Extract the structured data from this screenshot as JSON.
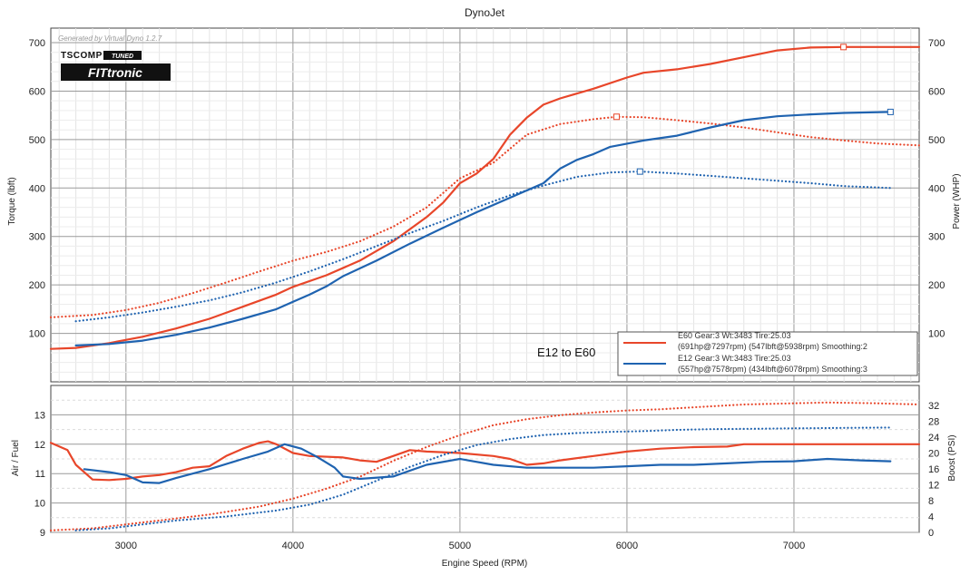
{
  "chart_data": {
    "title": "DynoJet",
    "generated_by": "Generated by Virtual Dyno 1.2.7",
    "logo_text": [
      "TSCOMP",
      "TUNED",
      "FITtronic"
    ],
    "annotation": "E12 to E60",
    "xlabel": "Engine Speed (RPM)",
    "x_ticks": [
      "3000",
      "4000",
      "5000",
      "6000",
      "7000"
    ],
    "xlim": [
      2550,
      7750
    ],
    "top_panel": {
      "type": "line",
      "ylabel_left": "Torque (lbft)",
      "ylabel_right": "Power (WHP)",
      "ylim": [
        0,
        730
      ],
      "y_ticks_left": [
        "100",
        "200",
        "300",
        "400",
        "500",
        "600",
        "700"
      ],
      "y_ticks_right": [
        "100",
        "200",
        "300",
        "400",
        "500",
        "600",
        "700"
      ],
      "series": [
        {
          "name": "E60 Gear:3 Wt:3483 Tire:25.03",
          "legend_detail": "(691hp@7297rpm) (547lbft@5938rpm) Smoothing:2",
          "metric": "power",
          "color": "#e8462a",
          "style": "solid",
          "marker": {
            "x": 7297,
            "y": 691
          },
          "points": [
            [
              2550,
              68
            ],
            [
              2700,
              70
            ],
            [
              2900,
              80
            ],
            [
              3100,
              93
            ],
            [
              3300,
              110
            ],
            [
              3500,
              130
            ],
            [
              3700,
              155
            ],
            [
              3900,
              180
            ],
            [
              4000,
              196
            ],
            [
              4200,
              220
            ],
            [
              4400,
              250
            ],
            [
              4600,
              290
            ],
            [
              4800,
              340
            ],
            [
              4900,
              370
            ],
            [
              5000,
              410
            ],
            [
              5100,
              430
            ],
            [
              5200,
              460
            ],
            [
              5300,
              510
            ],
            [
              5400,
              545
            ],
            [
              5500,
              572
            ],
            [
              5600,
              585
            ],
            [
              5800,
              605
            ],
            [
              6000,
              628
            ],
            [
              6100,
              638
            ],
            [
              6300,
              645
            ],
            [
              6500,
              656
            ],
            [
              6700,
              670
            ],
            [
              6900,
              684
            ],
            [
              7100,
              690
            ],
            [
              7297,
              691
            ],
            [
              7500,
              691
            ],
            [
              7750,
              691
            ]
          ]
        },
        {
          "name": "E60 torque",
          "metric": "torque",
          "color": "#e8462a",
          "style": "dotted",
          "marker": {
            "x": 5938,
            "y": 547
          },
          "points": [
            [
              2550,
              133
            ],
            [
              2800,
              138
            ],
            [
              3000,
              148
            ],
            [
              3200,
              163
            ],
            [
              3400,
              183
            ],
            [
              3600,
              205
            ],
            [
              3800,
              228
            ],
            [
              4000,
              250
            ],
            [
              4200,
              268
            ],
            [
              4400,
              290
            ],
            [
              4600,
              320
            ],
            [
              4800,
              360
            ],
            [
              5000,
              420
            ],
            [
              5200,
              452
            ],
            [
              5400,
              510
            ],
            [
              5600,
              532
            ],
            [
              5800,
              542
            ],
            [
              5938,
              547
            ],
            [
              6100,
              546
            ],
            [
              6300,
              540
            ],
            [
              6500,
              533
            ],
            [
              6700,
              525
            ],
            [
              6900,
              515
            ],
            [
              7100,
              505
            ],
            [
              7300,
              498
            ],
            [
              7500,
              492
            ],
            [
              7750,
              488
            ]
          ]
        },
        {
          "name": "E12 Gear:3 Wt:3483 Tire:25.03",
          "legend_detail": "(557hp@7578rpm) (434lbft@6078rpm) Smoothing:3",
          "metric": "power",
          "color": "#1f63b0",
          "style": "solid",
          "marker": {
            "x": 7578,
            "y": 557
          },
          "points": [
            [
              2700,
              75
            ],
            [
              2900,
              78
            ],
            [
              3100,
              85
            ],
            [
              3300,
              97
            ],
            [
              3500,
              112
            ],
            [
              3700,
              130
            ],
            [
              3900,
              150
            ],
            [
              4000,
              165
            ],
            [
              4100,
              180
            ],
            [
              4200,
              197
            ],
            [
              4300,
              218
            ],
            [
              4500,
              250
            ],
            [
              4700,
              285
            ],
            [
              4900,
              318
            ],
            [
              5100,
              350
            ],
            [
              5300,
              380
            ],
            [
              5500,
              410
            ],
            [
              5600,
              440
            ],
            [
              5700,
              458
            ],
            [
              5800,
              470
            ],
            [
              5900,
              485
            ],
            [
              6100,
              498
            ],
            [
              6300,
              508
            ],
            [
              6500,
              525
            ],
            [
              6700,
              540
            ],
            [
              6900,
              548
            ],
            [
              7100,
              552
            ],
            [
              7300,
              555
            ],
            [
              7578,
              557
            ]
          ]
        },
        {
          "name": "E12 torque",
          "metric": "torque",
          "color": "#1f63b0",
          "style": "dotted",
          "marker": {
            "x": 6078,
            "y": 434
          },
          "points": [
            [
              2700,
              125
            ],
            [
              2900,
              133
            ],
            [
              3100,
              143
            ],
            [
              3300,
              155
            ],
            [
              3500,
              168
            ],
            [
              3700,
              185
            ],
            [
              3900,
              205
            ],
            [
              4100,
              228
            ],
            [
              4300,
              253
            ],
            [
              4500,
              280
            ],
            [
              4700,
              307
            ],
            [
              4900,
              332
            ],
            [
              5100,
              360
            ],
            [
              5300,
              385
            ],
            [
              5500,
              405
            ],
            [
              5700,
              423
            ],
            [
              5900,
              432
            ],
            [
              6078,
              434
            ],
            [
              6300,
              430
            ],
            [
              6500,
              425
            ],
            [
              6700,
              420
            ],
            [
              6900,
              415
            ],
            [
              7100,
              410
            ],
            [
              7300,
              404
            ],
            [
              7578,
              400
            ]
          ]
        }
      ]
    },
    "bottom_panel": {
      "type": "line",
      "ylabel_left": "Air / Fuel",
      "ylabel_right": "Boost (PSI)",
      "ylim_left": [
        9,
        14
      ],
      "ylim_right": [
        0,
        37
      ],
      "y_ticks_left": [
        "9",
        "10",
        "11",
        "12",
        "13"
      ],
      "y_ticks_right": [
        "0",
        "4",
        "8",
        "12",
        "16",
        "20",
        "24",
        "28",
        "32"
      ],
      "series": [
        {
          "name": "E60 AFR",
          "metric": "afr",
          "color": "#e8462a",
          "style": "solid",
          "points": [
            [
              2550,
              12.05
            ],
            [
              2650,
              11.8
            ],
            [
              2700,
              11.3
            ],
            [
              2800,
              10.8
            ],
            [
              2900,
              10.78
            ],
            [
              3000,
              10.82
            ],
            [
              3100,
              10.9
            ],
            [
              3200,
              10.95
            ],
            [
              3300,
              11.05
            ],
            [
              3400,
              11.2
            ],
            [
              3500,
              11.25
            ],
            [
              3600,
              11.6
            ],
            [
              3700,
              11.85
            ],
            [
              3800,
              12.05
            ],
            [
              3850,
              12.1
            ],
            [
              3900,
              12.0
            ],
            [
              4000,
              11.7
            ],
            [
              4100,
              11.6
            ],
            [
              4300,
              11.55
            ],
            [
              4400,
              11.45
            ],
            [
              4500,
              11.4
            ],
            [
              4600,
              11.6
            ],
            [
              4700,
              11.8
            ],
            [
              4800,
              11.75
            ],
            [
              5000,
              11.7
            ],
            [
              5200,
              11.6
            ],
            [
              5300,
              11.5
            ],
            [
              5400,
              11.3
            ],
            [
              5500,
              11.35
            ],
            [
              5600,
              11.45
            ],
            [
              5800,
              11.6
            ],
            [
              6000,
              11.75
            ],
            [
              6200,
              11.85
            ],
            [
              6400,
              11.9
            ],
            [
              6600,
              11.92
            ],
            [
              6700,
              12.0
            ],
            [
              7000,
              12.0
            ],
            [
              7300,
              12.0
            ],
            [
              7750,
              12.0
            ]
          ]
        },
        {
          "name": "E60 boost",
          "metric": "boost",
          "color": "#e8462a",
          "style": "dotted",
          "points": [
            [
              2550,
              0.5
            ],
            [
              2800,
              1
            ],
            [
              3000,
              2
            ],
            [
              3200,
              3
            ],
            [
              3500,
              4.5
            ],
            [
              3800,
              6.5
            ],
            [
              4000,
              8.5
            ],
            [
              4200,
              11
            ],
            [
              4400,
              14
            ],
            [
              4600,
              18
            ],
            [
              4800,
              21.5
            ],
            [
              5000,
              24.5
            ],
            [
              5200,
              27
            ],
            [
              5400,
              28.5
            ],
            [
              5600,
              29.5
            ],
            [
              5800,
              30.2
            ],
            [
              6000,
              30.7
            ],
            [
              6200,
              31
            ],
            [
              6400,
              31.5
            ],
            [
              6700,
              32.2
            ],
            [
              7000,
              32.5
            ],
            [
              7200,
              32.7
            ],
            [
              7500,
              32.5
            ],
            [
              7750,
              32.2
            ]
          ]
        },
        {
          "name": "E12 AFR",
          "metric": "afr",
          "color": "#1f63b0",
          "style": "solid",
          "points": [
            [
              2750,
              11.15
            ],
            [
              2900,
              11.05
            ],
            [
              3000,
              10.95
            ],
            [
              3100,
              10.7
            ],
            [
              3200,
              10.68
            ],
            [
              3300,
              10.85
            ],
            [
              3500,
              11.15
            ],
            [
              3700,
              11.5
            ],
            [
              3850,
              11.75
            ],
            [
              3950,
              12.0
            ],
            [
              4050,
              11.85
            ],
            [
              4150,
              11.55
            ],
            [
              4250,
              11.2
            ],
            [
              4300,
              10.9
            ],
            [
              4400,
              10.82
            ],
            [
              4600,
              10.9
            ],
            [
              4800,
              11.3
            ],
            [
              5000,
              11.5
            ],
            [
              5200,
              11.3
            ],
            [
              5400,
              11.2
            ],
            [
              5600,
              11.2
            ],
            [
              5800,
              11.2
            ],
            [
              6000,
              11.25
            ],
            [
              6200,
              11.3
            ],
            [
              6400,
              11.3
            ],
            [
              6600,
              11.35
            ],
            [
              6800,
              11.4
            ],
            [
              7000,
              11.42
            ],
            [
              7200,
              11.5
            ],
            [
              7400,
              11.45
            ],
            [
              7578,
              11.42
            ]
          ]
        },
        {
          "name": "E12 boost",
          "metric": "boost",
          "color": "#1f63b0",
          "style": "dotted",
          "points": [
            [
              2700,
              0.5
            ],
            [
              2900,
              1
            ],
            [
              3100,
              2
            ],
            [
              3300,
              3
            ],
            [
              3600,
              4
            ],
            [
              3900,
              5.5
            ],
            [
              4100,
              7
            ],
            [
              4300,
              9.5
            ],
            [
              4500,
              13
            ],
            [
              4700,
              16.5
            ],
            [
              4900,
              19.5
            ],
            [
              5100,
              22
            ],
            [
              5300,
              23.5
            ],
            [
              5500,
              24.5
            ],
            [
              5700,
              25
            ],
            [
              5900,
              25.3
            ],
            [
              6100,
              25.5
            ],
            [
              6300,
              25.8
            ],
            [
              6500,
              26
            ],
            [
              6800,
              26.1
            ],
            [
              7000,
              26.2
            ],
            [
              7300,
              26.3
            ],
            [
              7578,
              26.4
            ]
          ]
        }
      ]
    },
    "legend": [
      {
        "line1": "E60 Gear:3 Wt:3483 Tire:25.03",
        "line2": "(691hp@7297rpm) (547lbft@5938rpm) Smoothing:2",
        "color": "#e8462a"
      },
      {
        "line1": "E12 Gear:3 Wt:3483 Tire:25.03",
        "line2": "(557hp@7578rpm) (434lbft@6078rpm) Smoothing:3",
        "color": "#1f63b0"
      }
    ],
    "grid": true,
    "legend_position": "bottom-right of top panel"
  }
}
